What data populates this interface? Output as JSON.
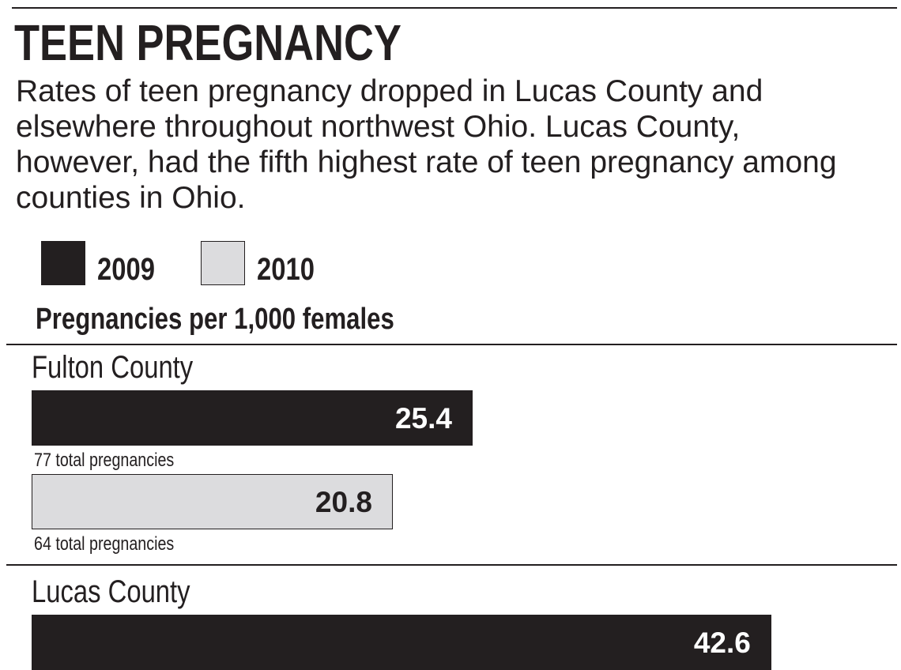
{
  "chart_data": {
    "type": "bar",
    "orientation": "horizontal",
    "title": "TEEN PREGNANCY",
    "subtitle": "Rates of teen pregnancy dropped in Lucas County and elsewhere throughout northwest Ohio. Lucas County, however, had the fifth highest rate of teen pregnancy among counties in Ohio.",
    "value_axis_label": "Pregnancies per 1,000 females",
    "categories": [
      "Fulton County",
      "Lucas County"
    ],
    "series": [
      {
        "name": "2009",
        "color": "#231f20",
        "label_color": "#ffffff",
        "values": [
          25.4,
          42.6
        ],
        "annotations": [
          "77 total pregnancies",
          null
        ]
      },
      {
        "name": "2010",
        "color": "#dcdcde",
        "label_color": "#231f20",
        "values": [
          20.8,
          null
        ],
        "annotations": [
          "64 total pregnancies",
          null
        ]
      }
    ]
  }
}
